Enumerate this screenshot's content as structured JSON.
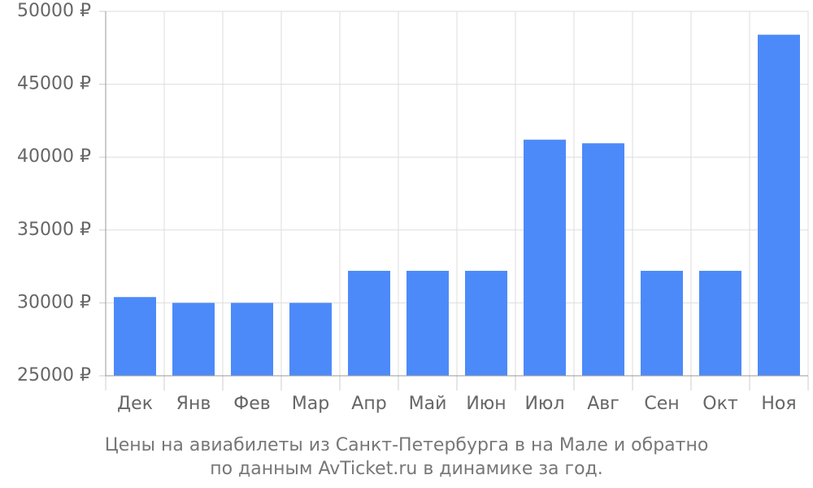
{
  "chart_data": {
    "type": "bar",
    "title": [
      "Цены на авиабилеты из Санкт-Петербурга в на Мале и обратно",
      "по данным AvTicket.ru в динамике за год."
    ],
    "categories": [
      "Дек",
      "Янв",
      "Фев",
      "Мар",
      "Апр",
      "Май",
      "Июн",
      "Июл",
      "Авг",
      "Сен",
      "Окт",
      "Ноя"
    ],
    "values": [
      30400,
      30000,
      30000,
      30000,
      32200,
      32200,
      32200,
      41200,
      40950,
      32200,
      32200,
      48400
    ],
    "color": "#4d8af9",
    "ylim": [
      25000,
      50000
    ],
    "yticks": [
      {
        "value": 25000,
        "label": "25000 ₽"
      },
      {
        "value": 30000,
        "label": "30000 ₽"
      },
      {
        "value": 35000,
        "label": "35000 ₽"
      },
      {
        "value": 40000,
        "label": "40000 ₽"
      },
      {
        "value": 45000,
        "label": "45000 ₽"
      },
      {
        "value": 50000,
        "label": "50000 ₽"
      }
    ],
    "grid": true
  }
}
